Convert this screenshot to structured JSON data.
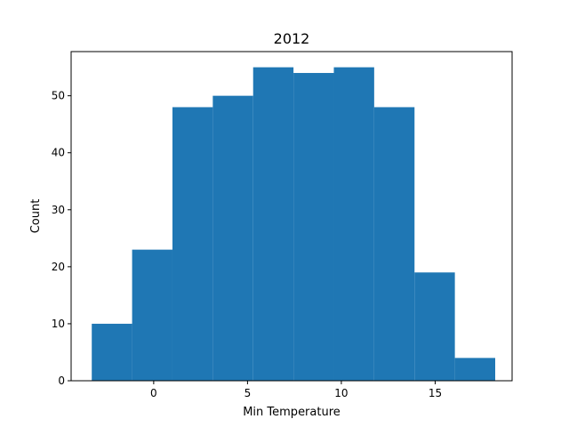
{
  "chart_data": {
    "type": "bar",
    "title": "2012",
    "xlabel": "Min Temperature",
    "ylabel": "Count",
    "xlim": [
      -4.4,
      19.1
    ],
    "ylim": [
      0,
      57.75
    ],
    "x_ticks": [
      0,
      5,
      10,
      15
    ],
    "y_ticks": [
      0,
      10,
      20,
      30,
      40,
      50
    ],
    "grid": false,
    "bar_color": "#1f77b4",
    "bin_edges": [
      -3.3,
      -1.15,
      1.0,
      3.15,
      5.3,
      7.45,
      9.6,
      11.75,
      13.9,
      16.05,
      18.2
    ],
    "values": [
      10,
      23,
      48,
      50,
      55,
      54,
      55,
      48,
      19,
      4
    ]
  }
}
